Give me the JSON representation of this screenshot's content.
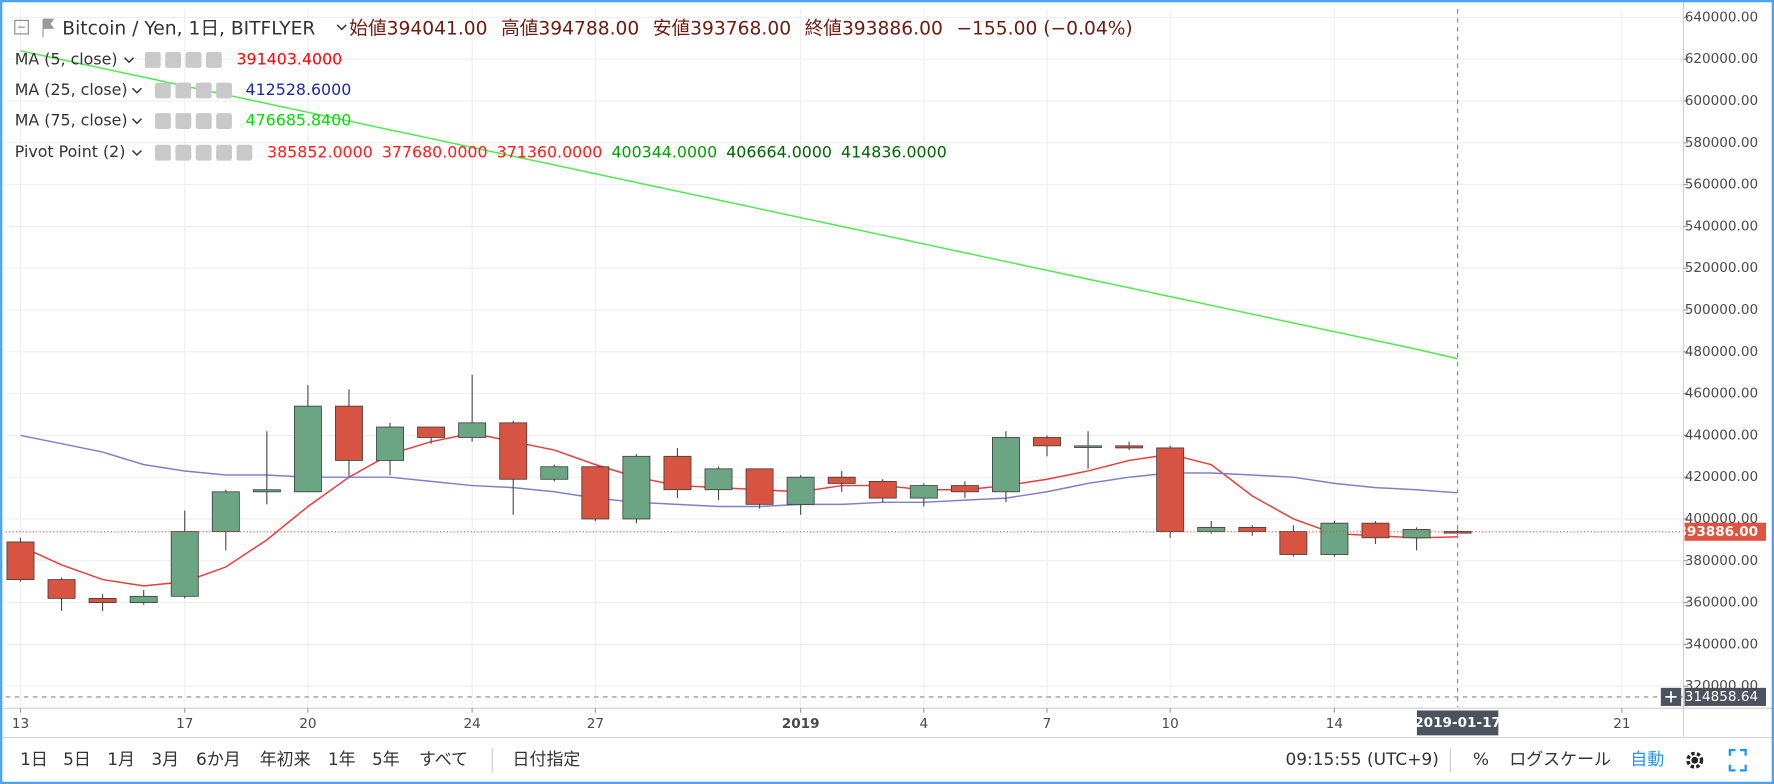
{
  "header": {
    "symbol": "Bitcoin / Yen, 1日, BITFLYER",
    "ohlc": [
      {
        "label": "始値",
        "value": "394041.00"
      },
      {
        "label": "高値",
        "value": "394788.00"
      },
      {
        "label": "安値",
        "value": "393768.00"
      },
      {
        "label": "終値",
        "value": "393886.00"
      }
    ],
    "change": "−155.00 (−0.04%)"
  },
  "pivot": {
    "name": "Pivot Point (2)",
    "levels": [
      {
        "text": "385852.0000",
        "color": "#ff1a1a"
      },
      {
        "text": "377680.0000",
        "color": "#ff1a1a"
      },
      {
        "text": "371360.0000",
        "color": "#ff1a1a"
      },
      {
        "text": "400344.0000",
        "color": "#00a000"
      },
      {
        "text": "406664.0000",
        "color": "#006400"
      },
      {
        "text": "414836.0000",
        "color": "#006400"
      }
    ]
  },
  "chart_data": {
    "type": "candlestick",
    "x": [
      0,
      1,
      2,
      3,
      4,
      5,
      6,
      7,
      8,
      9,
      10,
      11,
      12,
      13,
      14,
      15,
      16,
      17,
      18,
      19,
      20,
      21,
      22,
      23,
      24,
      25,
      26,
      27,
      28,
      29,
      30,
      31,
      32,
      33,
      34,
      35
    ],
    "open": [
      389000,
      371000,
      362000,
      360000,
      363000,
      394000,
      413000,
      413000,
      454000,
      428000,
      444000,
      439000,
      446000,
      419000,
      425000,
      400000,
      430000,
      414000,
      424000,
      407000,
      420000,
      418000,
      410000,
      416000,
      413000,
      439000,
      435000,
      435000,
      434000,
      394000,
      396000,
      394000,
      383000,
      398000,
      391000,
      394041
    ],
    "high": [
      391000,
      372000,
      364000,
      366000,
      404000,
      414000,
      442000,
      464000,
      462000,
      446000,
      444000,
      469000,
      447000,
      426000,
      425000,
      431000,
      434000,
      425000,
      424000,
      421000,
      423000,
      419000,
      417000,
      418000,
      442000,
      440000,
      442000,
      437000,
      435000,
      399000,
      397000,
      397000,
      399000,
      399000,
      396000,
      394788
    ],
    "low": [
      370000,
      356000,
      356000,
      359000,
      362000,
      385000,
      407000,
      413000,
      420000,
      421000,
      436000,
      437000,
      402000,
      418000,
      399000,
      398000,
      410000,
      409000,
      405000,
      402000,
      413000,
      408000,
      406000,
      410000,
      408000,
      430000,
      424000,
      433000,
      391000,
      393000,
      392000,
      382000,
      382000,
      388000,
      385000,
      393768
    ],
    "close": [
      371000,
      362000,
      360000,
      363000,
      394000,
      413000,
      414000,
      454000,
      428000,
      444000,
      439000,
      446000,
      419000,
      425000,
      400000,
      430000,
      414000,
      424000,
      407000,
      420000,
      417000,
      410000,
      416000,
      413000,
      439000,
      435000,
      435000,
      434000,
      394000,
      396000,
      394000,
      383000,
      398000,
      391000,
      395000,
      393886
    ],
    "up_color": "#6ba583",
    "down_color": "#d75442",
    "wick_color": "#4a4a4a",
    "series": [
      {
        "name": "MA (5, close)",
        "color": "#f03a3a",
        "label_color": "#ff0000",
        "legend_value": "391403.4000",
        "values": [
          387000,
          378000,
          371000,
          368000,
          370000,
          377000,
          390000,
          406000,
          420000,
          431000,
          437000,
          441000,
          437000,
          433000,
          426000,
          420000,
          416000,
          415000,
          414000,
          413000,
          416000,
          416000,
          414000,
          414000,
          416000,
          419000,
          423000,
          428000,
          431000,
          426000,
          411000,
          400000,
          393000,
          392000,
          391000,
          391403
        ]
      },
      {
        "name": "MA (25, close)",
        "color": "#7c80c8",
        "label_color": "#1d2a9e",
        "legend_value": "412528.6000",
        "values": [
          440000,
          436000,
          432000,
          426000,
          423000,
          421000,
          421000,
          420000,
          420000,
          420000,
          418000,
          416000,
          415000,
          413000,
          410000,
          408000,
          407000,
          406000,
          406000,
          407000,
          407000,
          408000,
          408000,
          409000,
          410000,
          413000,
          417000,
          420000,
          422000,
          422000,
          421000,
          420000,
          417000,
          415000,
          414000,
          412529
        ]
      },
      {
        "name": "MA (75, close)",
        "color": "#4cea4c",
        "label_color": "#00e000",
        "legend_value": "476685.8400",
        "values": [
          624000,
          619800,
          615600,
          611400,
          607200,
          603000,
          598800,
          594600,
          590400,
          586200,
          582000,
          577800,
          573600,
          569400,
          565200,
          561000,
          556800,
          552600,
          548400,
          544200,
          540000,
          535800,
          531600,
          527400,
          523200,
          519000,
          514800,
          510600,
          506400,
          502200,
          498000,
          493800,
          489600,
          485400,
          481200,
          476686
        ]
      }
    ],
    "xlim": [
      -0.36,
      40.5
    ],
    "ylim": [
      310000,
      644000
    ],
    "xticks": [
      {
        "value": 0,
        "label": "13"
      },
      {
        "value": 4,
        "label": "17"
      },
      {
        "value": 7,
        "label": "20"
      },
      {
        "value": 11,
        "label": "24"
      },
      {
        "value": 14,
        "label": "27"
      },
      {
        "value": 19,
        "label": "2019"
      },
      {
        "value": 22,
        "label": "4"
      },
      {
        "value": 25,
        "label": "7"
      },
      {
        "value": 28,
        "label": "10"
      },
      {
        "value": 32,
        "label": "14"
      },
      {
        "value": 39,
        "label": "21"
      }
    ],
    "yticks": [
      {
        "value": 320000,
        "label": "320000.00"
      },
      {
        "value": 340000,
        "label": "340000.00"
      },
      {
        "value": 360000,
        "label": "360000.00"
      },
      {
        "value": 380000,
        "label": "380000.00"
      },
      {
        "value": 400000,
        "label": "400000.00"
      },
      {
        "value": 420000,
        "label": "420000.00"
      },
      {
        "value": 440000,
        "label": "440000.00"
      },
      {
        "value": 460000,
        "label": "460000.00"
      },
      {
        "value": 480000,
        "label": "480000.00"
      },
      {
        "value": 500000,
        "label": "500000.00"
      },
      {
        "value": 520000,
        "label": "520000.00"
      },
      {
        "value": 540000,
        "label": "540000.00"
      },
      {
        "value": 560000,
        "label": "560000.00"
      },
      {
        "value": 580000,
        "label": "580000.00"
      },
      {
        "value": 600000,
        "label": "600000.00"
      },
      {
        "value": 620000,
        "label": "620000.00"
      },
      {
        "value": 640000,
        "label": "640000.00"
      }
    ],
    "grid": true
  },
  "price_tag": "393886.00",
  "crosshair": {
    "price": "314858.64",
    "date": "2019-01-17"
  },
  "toolbar": {
    "ranges": [
      "1日",
      "5日",
      "1月",
      "3月",
      "6か月",
      "年初来",
      "1年",
      "5年",
      "すべて"
    ],
    "goto": "日付指定",
    "time": "09:15:55 (UTC+9)",
    "percent": "%",
    "log": "ログスケール",
    "auto": "自動"
  }
}
